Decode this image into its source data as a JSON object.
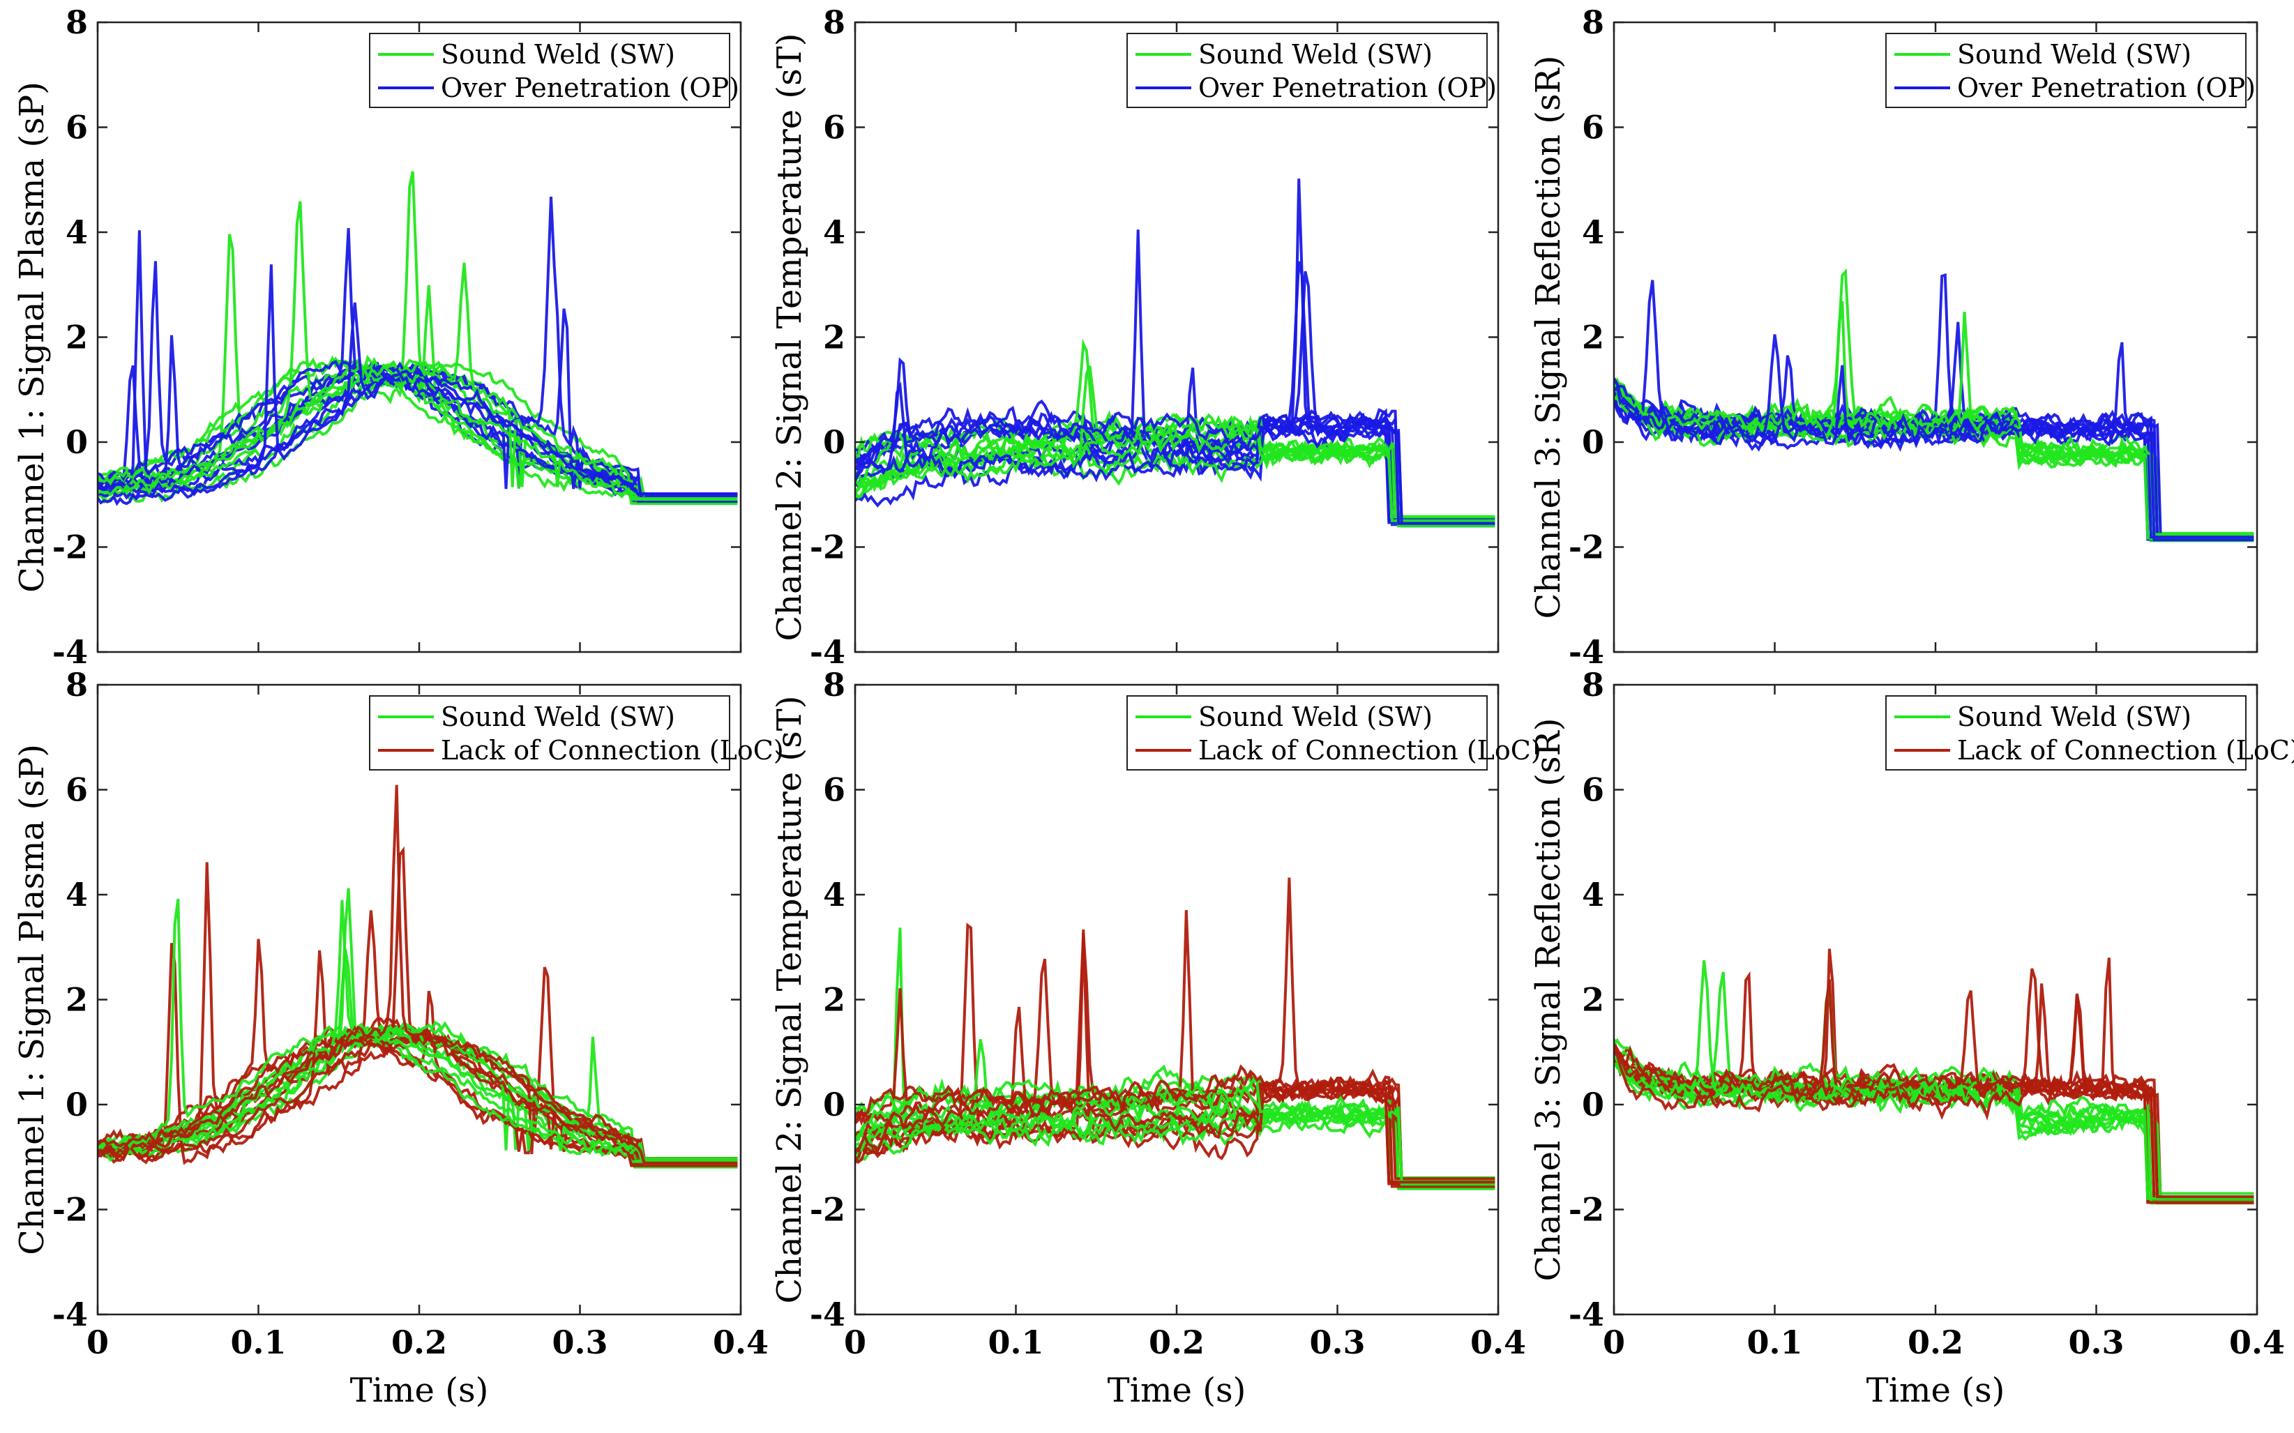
{
  "chart_data": [
    {
      "type": "line",
      "ylabel": "Channel 1: Signal Plasma (sP)",
      "xlabel": "",
      "xlim": [
        0,
        0.4
      ],
      "ylim": [
        -4,
        8
      ],
      "xticks": [
        "",
        "",
        "",
        "",
        ""
      ],
      "yticks": [
        "-4",
        "-2",
        "0",
        "2",
        "4",
        "6",
        "8"
      ],
      "channel": "P",
      "legend": [
        {
          "name": "Sound Weld (SW)",
          "color": "#22e61e"
        },
        {
          "name": "Over Penetration (OP)",
          "color": "#1a1ae6"
        }
      ],
      "legend_position": "top-right"
    },
    {
      "type": "line",
      "ylabel": "Channel 2: Signal Temperature (sT)",
      "xlabel": "",
      "xlim": [
        0,
        0.4
      ],
      "ylim": [
        -4,
        8
      ],
      "xticks": [
        "",
        "",
        "",
        "",
        ""
      ],
      "yticks": [
        "-4",
        "-2",
        "0",
        "2",
        "4",
        "6",
        "8"
      ],
      "channel": "T",
      "legend": [
        {
          "name": "Sound Weld (SW)",
          "color": "#22e61e"
        },
        {
          "name": "Over Penetration (OP)",
          "color": "#1a1ae6"
        }
      ],
      "legend_position": "top-right"
    },
    {
      "type": "line",
      "ylabel": "Channel 3: Signal Reflection (sR)",
      "xlabel": "",
      "xlim": [
        0,
        0.4
      ],
      "ylim": [
        -4,
        8
      ],
      "xticks": [
        "",
        "",
        "",
        "",
        ""
      ],
      "yticks": [
        "-4",
        "-2",
        "0",
        "2",
        "4",
        "6",
        "8"
      ],
      "channel": "R",
      "legend": [
        {
          "name": "Sound Weld (SW)",
          "color": "#22e61e"
        },
        {
          "name": "Over Penetration (OP)",
          "color": "#1a1ae6"
        }
      ],
      "legend_position": "top-right"
    },
    {
      "type": "line",
      "ylabel": "Channel 1: Signal Plasma (sP)",
      "xlabel": "Time (s)",
      "xlim": [
        0,
        0.4
      ],
      "ylim": [
        -4,
        8
      ],
      "xticks": [
        "0",
        "0.1",
        "0.2",
        "0.3",
        "0.4"
      ],
      "yticks": [
        "-4",
        "-2",
        "0",
        "2",
        "4",
        "6",
        "8"
      ],
      "channel": "P",
      "legend": [
        {
          "name": "Sound Weld (SW)",
          "color": "#22e61e"
        },
        {
          "name": "Lack of Connection (LoC)",
          "color": "#b01e0e"
        }
      ],
      "legend_position": "top-right"
    },
    {
      "type": "line",
      "ylabel": "Channel 2: Signal Temperature (sT)",
      "xlabel": "Time (s)",
      "xlim": [
        0,
        0.4
      ],
      "ylim": [
        -4,
        8
      ],
      "xticks": [
        "0",
        "0.1",
        "0.2",
        "0.3",
        "0.4"
      ],
      "yticks": [
        "-4",
        "-2",
        "0",
        "2",
        "4",
        "6",
        "8"
      ],
      "channel": "T",
      "legend": [
        {
          "name": "Sound Weld (SW)",
          "color": "#22e61e"
        },
        {
          "name": "Lack of Connection (LoC)",
          "color": "#b01e0e"
        }
      ],
      "legend_position": "top-right"
    },
    {
      "type": "line",
      "ylabel": "Channel 3: Signal Reflection (sR)",
      "xlabel": "Time (s)",
      "xlim": [
        0,
        0.4
      ],
      "ylim": [
        -4,
        8
      ],
      "xticks": [
        "0",
        "0.1",
        "0.2",
        "0.3",
        "0.4"
      ],
      "yticks": [
        "-4",
        "-2",
        "0",
        "2",
        "4",
        "6",
        "8"
      ],
      "channel": "R",
      "legend": [
        {
          "name": "Sound Weld (SW)",
          "color": "#22e61e"
        },
        {
          "name": "Lack of Connection (LoC)",
          "color": "#b01e0e"
        }
      ],
      "legend_position": "top-right"
    }
  ]
}
